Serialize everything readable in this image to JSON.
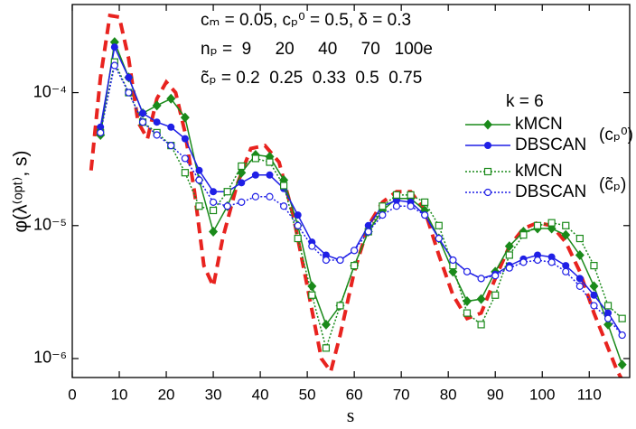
{
  "chart_data": {
    "type": "line",
    "x_label": "s",
    "y_label": "φ(λ⁽ᵒᵖᵗ⁾, s)",
    "yscale": "log",
    "xlim": [
      0,
      118.6
    ],
    "ylim": [
      7.2e-07,
      0.00046
    ],
    "xticks": [
      0,
      10,
      20,
      30,
      40,
      50,
      60,
      70,
      80,
      90,
      100,
      110
    ],
    "yticks": [
      {
        "value": 1e-06,
        "label": "10⁻⁶"
      },
      {
        "value": 1e-05,
        "label": "10⁻⁵"
      },
      {
        "value": 0.0001,
        "label": "10⁻⁴"
      }
    ],
    "annotations": [
      "cₘ = 0.05, cₚ⁰ = 0.5, δ = 0.3",
      "nₚ =  9     20     40     70   100e",
      "c̃ₚ = 0.2  0.25  0.33  0.5  0.75"
    ],
    "legend_title": "k = 6",
    "legend_groups": [
      "(cₚ⁰)",
      "(c̃ₚ)"
    ],
    "series": [
      {
        "color": "#e8231f",
        "dash": "dashed",
        "marker": "none",
        "x": [
          4,
          6,
          8,
          10,
          12,
          14,
          16,
          18,
          20,
          22,
          24,
          26,
          28,
          30,
          32,
          35,
          38,
          41,
          44,
          47,
          50,
          53,
          55,
          57,
          60,
          63,
          66,
          69,
          72,
          75,
          78,
          81,
          84,
          87,
          90,
          93,
          96,
          99,
          102,
          105,
          108,
          111,
          114,
          116,
          118
        ],
        "values": [
          2.6e-05,
          0.00013,
          0.00038,
          0.00037,
          0.00018,
          6e-05,
          4.5e-05,
          9e-05,
          0.00012,
          0.0001,
          5e-05,
          1.8e-05,
          5e-06,
          3.5e-06,
          8e-06,
          2e-05,
          3.8e-05,
          4e-05,
          3e-05,
          1.2e-05,
          3.5e-06,
          1e-06,
          8e-07,
          1.5e-06,
          4.5e-06,
          1e-05,
          1.5e-05,
          1.8e-05,
          1.8e-05,
          1.3e-05,
          6e-06,
          3e-06,
          2e-06,
          2.2e-06,
          4e-06,
          7e-06,
          9.5e-06,
          1.05e-05,
          1e-05,
          7.5e-06,
          4.5e-06,
          2.2e-06,
          1.2e-06,
          8e-07,
          6e-07
        ]
      },
      {
        "name": "kMCN",
        "color": "#1a8a1a",
        "dash": "solid",
        "marker": "diamond",
        "x": [
          6,
          9,
          12,
          15,
          18,
          21,
          24,
          27,
          30,
          33,
          36,
          39,
          42,
          45,
          48,
          51,
          54,
          57,
          60,
          63,
          66,
          69,
          72,
          75,
          78,
          81,
          84,
          87,
          90,
          93,
          96,
          99,
          102,
          105,
          108,
          111,
          114,
          117
        ],
        "values": [
          4.8e-05,
          0.00024,
          0.00013,
          7e-05,
          8e-05,
          9e-05,
          6.5e-05,
          2.2e-05,
          9e-06,
          1.4e-05,
          2.5e-05,
          3.4e-05,
          3.3e-05,
          2.2e-05,
          1e-05,
          3.5e-06,
          1.8e-06,
          2.5e-06,
          5e-06,
          9e-06,
          1.3e-05,
          1.6e-05,
          1.6e-05,
          1.3e-05,
          8e-06,
          4.5e-06,
          2.7e-06,
          2.8e-06,
          4.5e-06,
          7e-06,
          9e-06,
          9.5e-06,
          9.5e-06,
          8.5e-06,
          6e-06,
          3.5e-06,
          1.8e-06,
          9e-07
        ]
      },
      {
        "name": "DBSCAN",
        "color": "#1f1fe6",
        "dash": "solid",
        "marker": "circle",
        "x": [
          6,
          9,
          12,
          15,
          18,
          21,
          24,
          27,
          30,
          33,
          36,
          39,
          42,
          45,
          48,
          51,
          54,
          57,
          60,
          63,
          66,
          69,
          72,
          75,
          78,
          81,
          84,
          87,
          90,
          93,
          96,
          99,
          102,
          105,
          108,
          111,
          114,
          117
        ],
        "values": [
          5.5e-05,
          0.00022,
          0.00013,
          7e-05,
          6e-05,
          5.5e-05,
          4.5e-05,
          2.6e-05,
          1.8e-05,
          1.8e-05,
          2.1e-05,
          2.4e-05,
          2.4e-05,
          1.9e-05,
          1.2e-05,
          7.5e-06,
          6e-06,
          5.5e-06,
          6.5e-06,
          1e-05,
          1.4e-05,
          1.55e-05,
          1.5e-05,
          1.2e-05,
          8e-06,
          5.5e-06,
          4.5e-06,
          4e-06,
          4.3e-06,
          5e-06,
          5.6e-06,
          6e-06,
          5.8e-06,
          5e-06,
          4e-06,
          3e-06,
          2.2e-06,
          1.5e-06
        ]
      },
      {
        "name": "kMCN",
        "color": "#1a8a1a",
        "dash": "dotted",
        "marker": "open-square",
        "x": [
          6,
          9,
          12,
          15,
          18,
          21,
          24,
          27,
          30,
          33,
          36,
          39,
          42,
          45,
          48,
          51,
          54,
          57,
          60,
          63,
          66,
          69,
          72,
          75,
          78,
          81,
          84,
          87,
          90,
          93,
          96,
          99,
          102,
          105,
          108,
          111,
          114,
          117
        ],
        "values": [
          5e-05,
          0.00017,
          0.0001,
          6e-05,
          5e-05,
          4e-05,
          2.5e-05,
          1.4e-05,
          1.3e-05,
          1.8e-05,
          2.8e-05,
          3.2e-05,
          3e-05,
          2e-05,
          8e-06,
          3e-06,
          1.2e-06,
          2.5e-06,
          5e-06,
          9e-06,
          1.4e-05,
          1.7e-05,
          1.7e-05,
          1.5e-05,
          1e-05,
          5e-06,
          2.2e-06,
          1.8e-06,
          3e-06,
          6e-06,
          8.5e-06,
          1e-05,
          1.05e-05,
          1e-05,
          8e-06,
          5e-06,
          2.5e-06,
          2e-06
        ]
      },
      {
        "name": "DBSCAN",
        "color": "#1f1fe6",
        "dash": "dotted",
        "marker": "open-circle",
        "x": [
          6,
          9,
          12,
          15,
          18,
          21,
          24,
          27,
          30,
          33,
          36,
          39,
          42,
          45,
          48,
          51,
          54,
          57,
          60,
          63,
          66,
          69,
          72,
          75,
          78,
          81,
          84,
          87,
          90,
          93,
          96,
          99,
          102,
          105,
          108,
          111,
          114,
          117
        ],
        "values": [
          5e-05,
          0.00016,
          0.0001,
          6e-05,
          4.8e-05,
          4e-05,
          3.2e-05,
          2.2e-05,
          1.5e-05,
          1.4e-05,
          1.5e-05,
          1.65e-05,
          1.65e-05,
          1.4e-05,
          1e-05,
          7e-06,
          5.5e-06,
          5.5e-06,
          6.5e-06,
          9e-06,
          1.2e-05,
          1.4e-05,
          1.4e-05,
          1.2e-05,
          8e-06,
          5.5e-06,
          4.5e-06,
          4e-06,
          4.2e-06,
          4.8e-06,
          5.3e-06,
          5.5e-06,
          5.3e-06,
          4.5e-06,
          3.5e-06,
          2.5e-06,
          2e-06,
          1.5e-06
        ]
      }
    ]
  }
}
